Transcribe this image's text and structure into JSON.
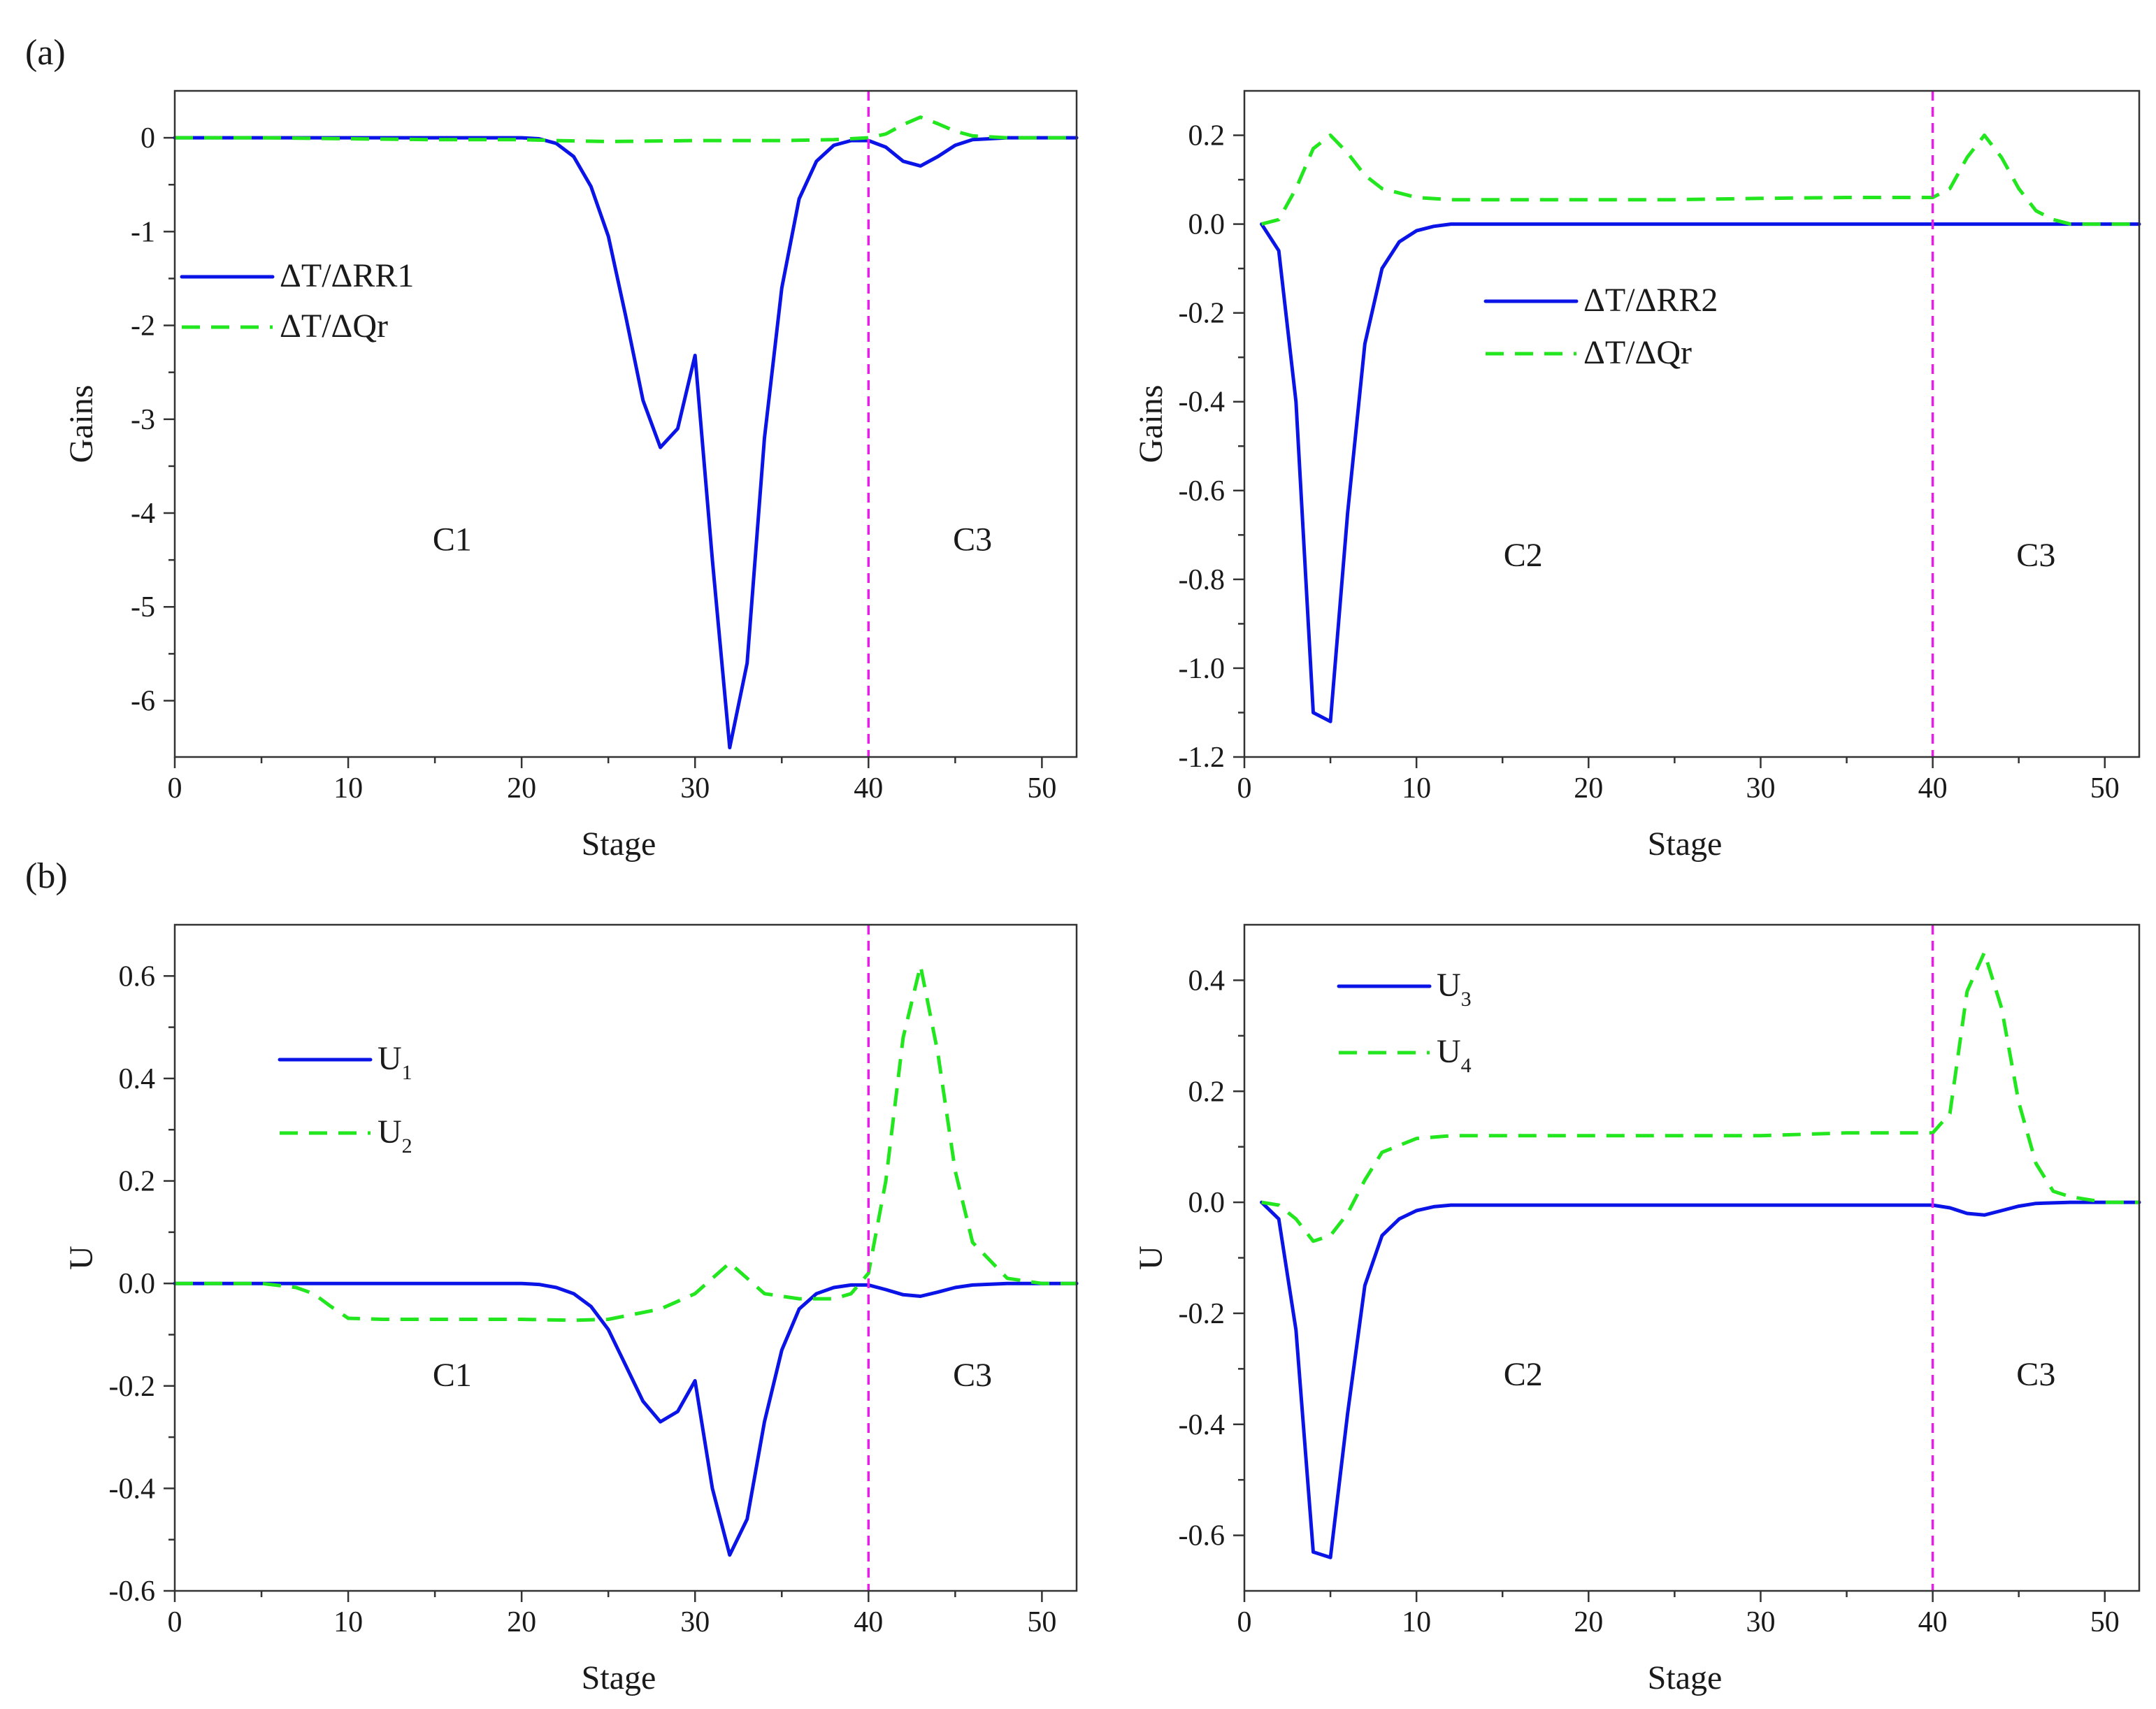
{
  "figure": {
    "label_a": "(a)",
    "label_b": "(b)"
  },
  "colors": {
    "series1": "#0a14e6",
    "series2": "#22e61e",
    "boundary": "#e61ee6"
  },
  "chart_data": [
    {
      "id": "a-left",
      "type": "line",
      "title": "",
      "xlabel": "Stage",
      "ylabel": "Gains",
      "xlim": [
        0,
        52
      ],
      "ylim": [
        -6.6,
        0.5
      ],
      "xticks": [
        0,
        10,
        20,
        30,
        40,
        50
      ],
      "yticks": [
        0,
        -1,
        -2,
        -3,
        -4,
        -5,
        -6
      ],
      "ytick_labels": [
        "0",
        "-1",
        "-2",
        "-3",
        "-4",
        "-5",
        "-6"
      ],
      "boundary_x": 40,
      "regions": [
        {
          "text": "C1",
          "x": 16,
          "y": -4.4
        },
        {
          "text": "C3",
          "x": 46,
          "y": -4.4
        }
      ],
      "legend": {
        "entries": [
          {
            "main": "ΔT/ΔRR1",
            "sub": "",
            "series": 0
          },
          {
            "main": "ΔT/ΔQr",
            "sub": "",
            "series": 1
          }
        ]
      },
      "series": [
        {
          "name": "ΔT/ΔRR1",
          "style": "solid",
          "x": [
            0,
            5,
            10,
            15,
            20,
            21,
            22,
            23,
            24,
            25,
            26,
            27,
            28,
            29,
            30,
            31,
            32,
            33,
            34,
            35,
            36,
            37,
            38,
            39,
            40,
            41,
            42,
            43,
            44,
            45,
            46,
            48,
            50,
            52
          ],
          "y": [
            0,
            0,
            0,
            0,
            0,
            -0.01,
            -0.06,
            -0.2,
            -0.52,
            -1.05,
            -1.9,
            -2.8,
            -3.3,
            -3.1,
            -2.32,
            -4.5,
            -6.5,
            -5.6,
            -3.2,
            -1.6,
            -0.65,
            -0.25,
            -0.08,
            -0.03,
            -0.03,
            -0.1,
            -0.25,
            -0.3,
            -0.2,
            -0.08,
            -0.02,
            0,
            0,
            0
          ]
        },
        {
          "name": "ΔT/ΔQr",
          "style": "dashed",
          "x": [
            0,
            5,
            10,
            15,
            20,
            22,
            25,
            30,
            35,
            38,
            40,
            41,
            42,
            43,
            44,
            45,
            46,
            48,
            50,
            52
          ],
          "y": [
            0,
            0,
            -0.01,
            -0.02,
            -0.02,
            -0.03,
            -0.04,
            -0.03,
            -0.03,
            -0.02,
            0,
            0.04,
            0.14,
            0.22,
            0.15,
            0.07,
            0.02,
            0,
            0,
            0
          ]
        }
      ]
    },
    {
      "id": "a-right",
      "type": "line",
      "title": "",
      "xlabel": "Stage",
      "ylabel": "Gains",
      "xlim": [
        0,
        52
      ],
      "ylim": [
        -1.2,
        0.3
      ],
      "xticks": [
        0,
        10,
        20,
        30,
        40,
        50
      ],
      "yticks": [
        0.2,
        0.0,
        -0.2,
        -0.4,
        -0.6,
        -0.8,
        -1.0,
        -1.2
      ],
      "ytick_labels": [
        "0.2",
        "0.0",
        "-0.2",
        "-0.4",
        "-0.6",
        "-0.8",
        "-1.0",
        "-1.2"
      ],
      "boundary_x": 40,
      "regions": [
        {
          "text": "C2",
          "x": 16.2,
          "y": -0.77
        },
        {
          "text": "C3",
          "x": 46,
          "y": -0.77
        }
      ],
      "legend": {
        "entries": [
          {
            "main": "ΔT/ΔRR2",
            "sub": "",
            "series": 0
          },
          {
            "main": "ΔT/ΔQr",
            "sub": "",
            "series": 1
          }
        ]
      },
      "series": [
        {
          "name": "ΔT/ΔRR2",
          "style": "solid",
          "x": [
            1,
            2,
            3,
            4,
            5,
            6,
            7,
            8,
            9,
            10,
            11,
            12,
            15,
            20,
            25,
            30,
            35,
            40,
            42,
            45,
            48,
            50,
            52
          ],
          "y": [
            0,
            -0.06,
            -0.4,
            -1.1,
            -1.12,
            -0.65,
            -0.27,
            -0.1,
            -0.04,
            -0.015,
            -0.005,
            0,
            0,
            0,
            0,
            0,
            0,
            0,
            0,
            0,
            0,
            0,
            0
          ]
        },
        {
          "name": "ΔT/ΔQr",
          "style": "dashed",
          "x": [
            1,
            2,
            3,
            4,
            5,
            6,
            7,
            8,
            10,
            12,
            15,
            20,
            25,
            30,
            35,
            40,
            41,
            42,
            43,
            44,
            45,
            46,
            47,
            48,
            50,
            52
          ],
          "y": [
            0,
            0.01,
            0.08,
            0.17,
            0.2,
            0.16,
            0.11,
            0.08,
            0.06,
            0.055,
            0.055,
            0.055,
            0.055,
            0.058,
            0.06,
            0.06,
            0.08,
            0.15,
            0.2,
            0.15,
            0.08,
            0.03,
            0.01,
            0,
            0,
            0
          ]
        }
      ]
    },
    {
      "id": "b-left",
      "type": "line",
      "title": "",
      "xlabel": "Stage",
      "ylabel": "U",
      "xlim": [
        0,
        52
      ],
      "ylim": [
        -0.6,
        0.7
      ],
      "xticks": [
        0,
        10,
        20,
        30,
        40,
        50
      ],
      "yticks": [
        0.6,
        0.4,
        0.2,
        0.0,
        -0.2,
        -0.4,
        -0.6
      ],
      "ytick_labels": [
        "0.6",
        "0.4",
        "0.2",
        "0.0",
        "-0.2",
        "-0.4",
        "-0.6"
      ],
      "boundary_x": 40,
      "regions": [
        {
          "text": "C1",
          "x": 16,
          "y": -0.2
        },
        {
          "text": "C3",
          "x": 46,
          "y": -0.2
        }
      ],
      "legend": {
        "entries": [
          {
            "main": "U",
            "sub": "1",
            "series": 0
          },
          {
            "main": "U",
            "sub": "2",
            "series": 1
          }
        ]
      },
      "series": [
        {
          "name": "U1",
          "style": "solid",
          "x": [
            0,
            5,
            10,
            15,
            20,
            21,
            22,
            23,
            24,
            25,
            26,
            27,
            28,
            29,
            30,
            31,
            32,
            33,
            34,
            35,
            36,
            37,
            38,
            39,
            40,
            41,
            42,
            43,
            44,
            45,
            46,
            48,
            50,
            52
          ],
          "y": [
            0,
            0,
            0,
            0,
            0,
            -0.002,
            -0.008,
            -0.02,
            -0.045,
            -0.09,
            -0.16,
            -0.23,
            -0.27,
            -0.25,
            -0.19,
            -0.4,
            -0.53,
            -0.46,
            -0.27,
            -0.13,
            -0.05,
            -0.02,
            -0.008,
            -0.003,
            -0.003,
            -0.012,
            -0.022,
            -0.025,
            -0.017,
            -0.008,
            -0.003,
            0,
            0,
            0
          ]
        },
        {
          "name": "U2",
          "style": "dashed",
          "x": [
            0,
            5,
            7,
            8,
            9,
            10,
            12,
            15,
            20,
            23,
            25,
            28,
            30,
            32,
            33,
            34,
            36,
            38,
            39,
            40,
            41,
            42,
            43,
            44,
            45,
            46,
            48,
            50,
            52
          ],
          "y": [
            0,
            0,
            -0.008,
            -0.02,
            -0.045,
            -0.068,
            -0.07,
            -0.07,
            -0.07,
            -0.072,
            -0.07,
            -0.05,
            -0.02,
            0.04,
            0.01,
            -0.02,
            -0.03,
            -0.03,
            -0.02,
            0.02,
            0.2,
            0.48,
            0.62,
            0.45,
            0.22,
            0.08,
            0.01,
            0,
            0
          ]
        }
      ]
    },
    {
      "id": "b-right",
      "type": "line",
      "title": "",
      "xlabel": "Stage",
      "ylabel": "U",
      "xlim": [
        0,
        52
      ],
      "ylim": [
        -0.7,
        0.5
      ],
      "xticks": [
        0,
        10,
        20,
        30,
        40,
        50
      ],
      "yticks": [
        0.4,
        0.2,
        0.0,
        -0.2,
        -0.4,
        -0.6
      ],
      "ytick_labels": [
        "0.4",
        "0.2",
        "0.0",
        "-0.2",
        "-0.4",
        "-0.6"
      ],
      "boundary_x": 40,
      "regions": [
        {
          "text": "C2",
          "x": 16.2,
          "y": -0.33
        },
        {
          "text": "C3",
          "x": 46,
          "y": -0.33
        }
      ],
      "legend": {
        "entries": [
          {
            "main": "U",
            "sub": "3",
            "series": 0
          },
          {
            "main": "U",
            "sub": "4",
            "series": 1
          }
        ]
      },
      "series": [
        {
          "name": "U3",
          "style": "solid",
          "x": [
            1,
            2,
            3,
            4,
            5,
            6,
            7,
            8,
            9,
            10,
            11,
            12,
            15,
            20,
            25,
            30,
            35,
            40,
            41,
            42,
            43,
            44,
            45,
            46,
            48,
            50,
            52
          ],
          "y": [
            0,
            -0.03,
            -0.23,
            -0.63,
            -0.64,
            -0.38,
            -0.15,
            -0.06,
            -0.03,
            -0.015,
            -0.008,
            -0.005,
            -0.005,
            -0.005,
            -0.005,
            -0.005,
            -0.005,
            -0.005,
            -0.01,
            -0.02,
            -0.023,
            -0.015,
            -0.007,
            -0.002,
            0,
            0,
            0
          ]
        },
        {
          "name": "U4",
          "style": "dashed",
          "x": [
            1,
            2,
            3,
            4,
            5,
            6,
            7,
            8,
            10,
            12,
            15,
            20,
            25,
            30,
            35,
            40,
            41,
            42,
            43,
            44,
            45,
            46,
            47,
            48,
            50,
            52
          ],
          "y": [
            0,
            -0.005,
            -0.03,
            -0.07,
            -0.06,
            -0.02,
            0.04,
            0.09,
            0.115,
            0.12,
            0.12,
            0.12,
            0.12,
            0.12,
            0.125,
            0.125,
            0.16,
            0.38,
            0.45,
            0.35,
            0.18,
            0.07,
            0.02,
            0.01,
            0,
            0
          ]
        }
      ]
    }
  ]
}
